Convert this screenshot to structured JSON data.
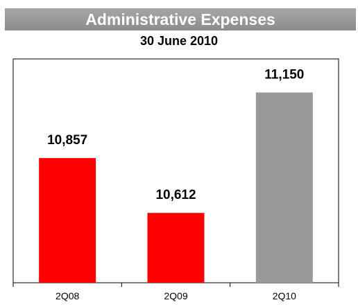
{
  "chart_data": {
    "type": "bar",
    "title": "Administrative Expenses",
    "subtitle": "30 June 2010",
    "categories": [
      "2Q08",
      "2Q09",
      "2Q10"
    ],
    "values": [
      10857,
      10612,
      11150
    ],
    "value_labels": [
      "10,857",
      "10,612",
      "11,150"
    ],
    "colors": [
      "#ff0000",
      "#ff0000",
      "#999999"
    ],
    "ylim": [
      10300,
      11300
    ],
    "xlabel": "",
    "ylabel": "",
    "grid": false,
    "legend": "none"
  }
}
